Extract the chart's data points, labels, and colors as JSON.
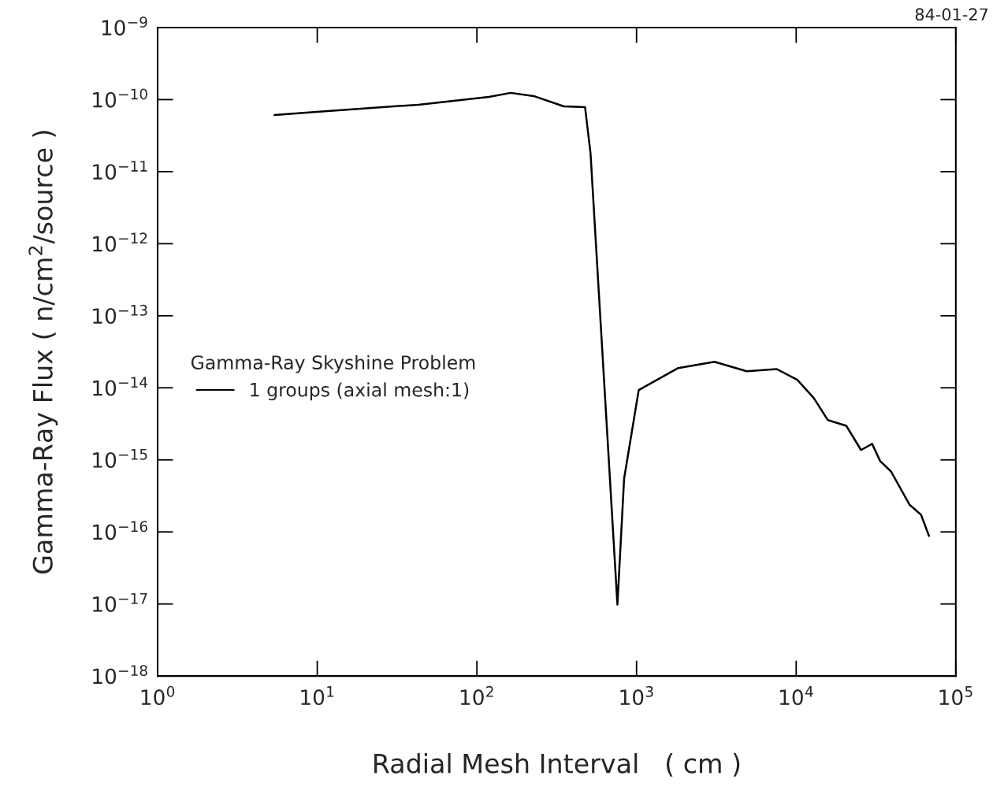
{
  "chart_data": {
    "type": "line",
    "xlabel": "Radial Mesh Interval   ( cm )",
    "ylabel": "Gamma-Ray Flux ( n/cm$^{2}$/source )",
    "legend_title": "Gamma-Ray Skyshine Problem",
    "legend": "left",
    "log": "xy",
    "grid": false,
    "marker": "none",
    "line_style": "solid",
    "annotations": [
      "84-01-27"
    ],
    "xlim": [
      1,
      100000
    ],
    "ylim": [
      1e-18,
      1e-09
    ],
    "xticks": [
      {
        "value": 1,
        "label": "10$^{0}$"
      },
      {
        "value": 10,
        "label": "10$^{1}$"
      },
      {
        "value": 100,
        "label": "10$^{2}$"
      },
      {
        "value": 1000,
        "label": "10$^{3}$"
      },
      {
        "value": 10000,
        "label": "10$^{4}$"
      },
      {
        "value": 100000,
        "label": "10$^{5}$"
      }
    ],
    "yticks": [
      {
        "value": 1e-18,
        "label": "10$^{−18}$"
      },
      {
        "value": 1e-17,
        "label": "10$^{−17}$"
      },
      {
        "value": 1e-16,
        "label": "10$^{−16}$"
      },
      {
        "value": 1e-15,
        "label": "10$^{−15}$"
      },
      {
        "value": 1e-14,
        "label": "10$^{−14}$"
      },
      {
        "value": 1e-13,
        "label": "10$^{−13}$"
      },
      {
        "value": 1e-12,
        "label": "10$^{−12}$"
      },
      {
        "value": 1e-11,
        "label": "10$^{−11}$"
      },
      {
        "value": 1e-10,
        "label": "10$^{−10}$"
      },
      {
        "value": 1e-09,
        "label": "10$^{−9}$"
      }
    ],
    "series": [
      {
        "name": "1 groups (axial mesh:1)",
        "color": "#000000",
        "x": [
          5.4,
          10.3,
          43,
          119,
          163,
          227,
          350,
          476,
          515,
          759,
          836,
          1032,
          1824,
          3076,
          4900,
          7550,
          10160,
          12900,
          15800,
          20600,
          25500,
          29900,
          33600,
          39300,
          51200,
          60600,
          67900
        ],
        "values": [
          6.1e-11,
          6.8e-11,
          8.5e-11,
          1.09e-10,
          1.24e-10,
          1.12e-10,
          8.05e-11,
          7.85e-11,
          1.8e-11,
          9.8e-18,
          5.5e-16,
          9.3e-15,
          1.88e-14,
          2.3e-14,
          1.7e-14,
          1.82e-14,
          1.29e-14,
          7.2e-15,
          3.56e-15,
          2.97e-15,
          1.37e-15,
          1.67e-15,
          9.6e-16,
          6.9e-16,
          2.4e-16,
          1.73e-16,
          8.8e-17
        ]
      }
    ]
  }
}
